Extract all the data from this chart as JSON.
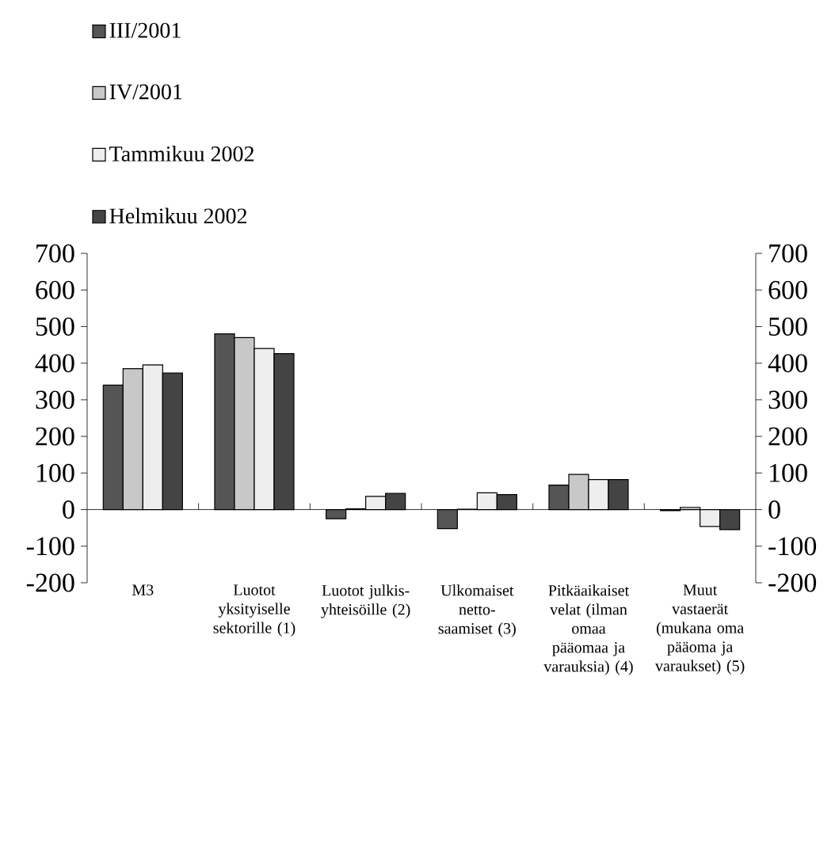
{
  "chart_data": {
    "type": "bar",
    "categories": [
      "M3",
      "Luotot yksityiselle sektorille (1)",
      "Luotot julkis-yhteisöille (2)",
      "Ulkomaiset netto-saamiset (3)",
      "Pitkäaikaiset velat (ilman omaa pääomaa ja varauksia) (4)",
      "Muut vastaerät (mukana oma pääoma ja varaukset) (5)"
    ],
    "series": [
      {
        "name": "III/2001",
        "color": "#555555",
        "values": [
          340,
          480,
          -25,
          -52,
          67,
          -3
        ]
      },
      {
        "name": "IV/2001",
        "color": "#c8c8c8",
        "values": [
          385,
          470,
          2,
          1,
          96,
          6
        ]
      },
      {
        "name": "Tammikuu 2002",
        "color": "#eeeeee",
        "values": [
          395,
          440,
          36,
          46,
          82,
          -46
        ]
      },
      {
        "name": "Helmikuu 2002",
        "color": "#444444",
        "values": [
          373,
          426,
          44,
          41,
          82,
          -55
        ]
      }
    ],
    "ylim": [
      -200,
      700
    ],
    "yticks": [
      -200,
      -100,
      0,
      100,
      200,
      300,
      400,
      500,
      600,
      700
    ],
    "y2lim": [
      -200,
      700
    ],
    "y2ticks": [
      -200,
      -100,
      0,
      100,
      200,
      300,
      400,
      500,
      600,
      700
    ],
    "legend": "top left"
  }
}
